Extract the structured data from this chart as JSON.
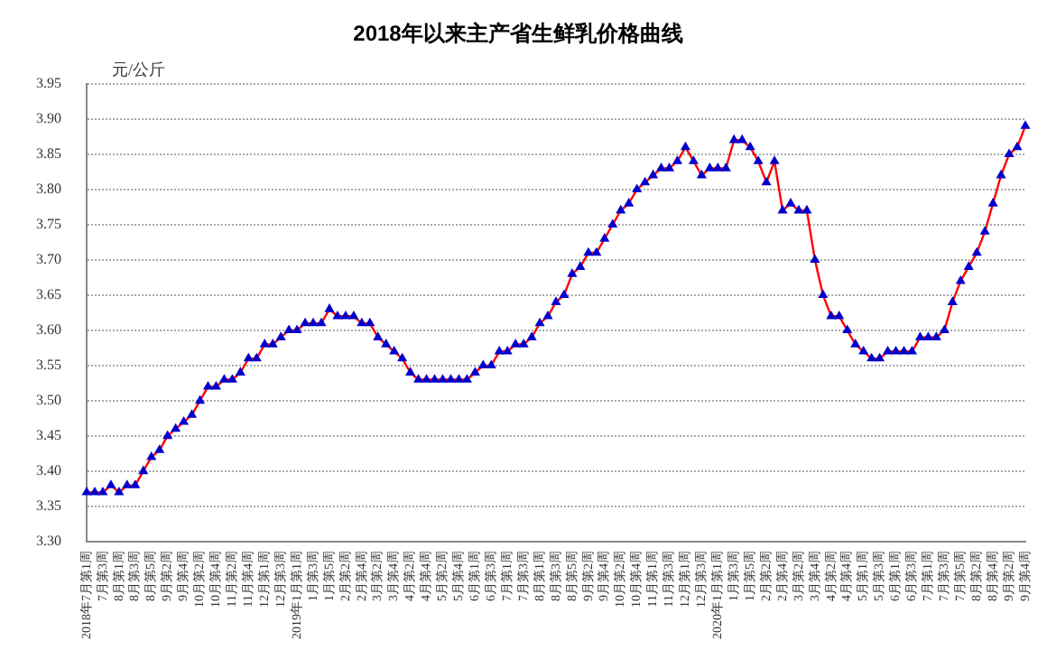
{
  "chart_data": {
    "type": "line",
    "title": "2018年以来主产省生鲜乳价格曲线",
    "ylabel": "元/公斤",
    "categories": [
      "2018年7月第1周",
      null,
      "7月第3周",
      null,
      "8月第1周",
      null,
      "8月第3周",
      null,
      "8月第5周",
      null,
      "9月第2周",
      null,
      "9月第4周",
      null,
      "10月第2周",
      null,
      "10月第4周",
      null,
      "11月第2周",
      null,
      "11月第4周",
      null,
      "12月第1周",
      null,
      "12月第3周",
      null,
      "2019年1月第1周",
      null,
      "1月第3周",
      null,
      "1月第5周",
      null,
      "2月第2周",
      null,
      "2月第4周",
      null,
      "3月第2周",
      null,
      "3月第4周",
      null,
      "4月第2周",
      null,
      "4月第4周",
      null,
      "5月第2周",
      null,
      "5月第4周",
      null,
      "6月第1周",
      null,
      "6月第3周",
      null,
      "7月第1周",
      null,
      "7月第3周",
      null,
      "8月第1周",
      null,
      "8月第3周",
      null,
      "8月第5周",
      null,
      "9月第2周",
      null,
      "9月第4周",
      null,
      "10月第2周",
      null,
      "10月第4周",
      null,
      "11月第1周",
      null,
      "11月第3周",
      null,
      "12月第1周",
      null,
      "12月第3周",
      null,
      "2020年1月第1周",
      null,
      "1月第3周",
      null,
      "1月第5周",
      null,
      "2月第2周",
      null,
      "2月第4周",
      null,
      "3月第2周",
      null,
      "3月第4周",
      null,
      "4月第2周",
      null,
      "4月第4周",
      null,
      "5月第1周",
      null,
      "5月第3周",
      null,
      "6月第1周",
      null,
      "6月第3周",
      null,
      "7月第1周",
      null,
      "7月第3周",
      null,
      "7月第5周",
      null,
      "8月第2周",
      null,
      "8月第4周",
      null,
      "9月第2周",
      null,
      "9月第4周"
    ],
    "series": [
      {
        "color": "#ff0000",
        "values": [
          3.37,
          3.37,
          3.37,
          3.38,
          3.37,
          3.38,
          3.38,
          3.4,
          3.42,
          3.43,
          3.45,
          3.46,
          3.47,
          3.48,
          3.5,
          3.52,
          3.52,
          3.53,
          3.53,
          3.54,
          3.56,
          3.56,
          3.58,
          3.58,
          3.59,
          3.6,
          3.6,
          3.61,
          3.61,
          3.61,
          3.63,
          3.62,
          3.62,
          3.62,
          3.61,
          3.61,
          3.59,
          3.58,
          3.57,
          3.56,
          3.54,
          3.53,
          3.53,
          3.53,
          3.53,
          3.53,
          3.53,
          3.53,
          3.54,
          3.55,
          3.55,
          3.57,
          3.57,
          3.58,
          3.58,
          3.59,
          3.61,
          3.62,
          3.64,
          3.65,
          3.68,
          3.69,
          3.71,
          3.71,
          3.73,
          3.75,
          3.77,
          3.78,
          3.8,
          3.81,
          3.82,
          3.83,
          3.83,
          3.84,
          3.86,
          3.84,
          3.82,
          3.83,
          3.83,
          3.83,
          3.87,
          3.87,
          3.86,
          3.84,
          3.81,
          3.84,
          3.77,
          3.78,
          3.77,
          3.77,
          3.7,
          3.65,
          3.62,
          3.62,
          3.6,
          3.58,
          3.57,
          3.56,
          3.56,
          3.57,
          3.57,
          3.57,
          3.57,
          3.59,
          3.59,
          3.59,
          3.6,
          3.64,
          3.67,
          3.69,
          3.71,
          3.74,
          3.78,
          3.82,
          3.85,
          3.86,
          3.89
        ]
      }
    ],
    "ylim": [
      3.3,
      3.95
    ],
    "yticks": [
      {
        "value": 3.3,
        "label": "3.30"
      },
      {
        "value": 3.35,
        "label": "3.35"
      },
      {
        "value": 3.4,
        "label": "3.40"
      },
      {
        "value": 3.45,
        "label": "3.45"
      },
      {
        "value": 3.5,
        "label": "3.50"
      },
      {
        "value": 3.55,
        "label": "3.55"
      },
      {
        "value": 3.6,
        "label": "3.60"
      },
      {
        "value": 3.65,
        "label": "3.65"
      },
      {
        "value": 3.7,
        "label": "3.70"
      },
      {
        "value": 3.75,
        "label": "3.75"
      },
      {
        "value": 3.8,
        "label": "3.80"
      },
      {
        "value": 3.85,
        "label": "3.85"
      },
      {
        "value": 3.9,
        "label": "3.90"
      },
      {
        "value": 3.95,
        "label": "3.95"
      }
    ],
    "grid": "y",
    "legend": false,
    "marker": "triangle",
    "line_style": "solid"
  }
}
